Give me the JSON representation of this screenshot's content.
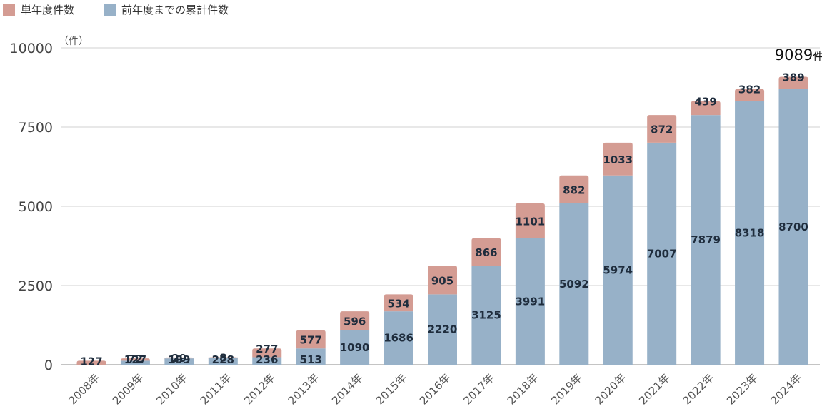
{
  "chart_data": {
    "type": "bar",
    "stacked": true,
    "categories": [
      "2008年",
      "2009年",
      "2010年",
      "2011年",
      "2012年",
      "2013年",
      "2014年",
      "2015年",
      "2016年",
      "2017年",
      "2018年",
      "2019年",
      "2020年",
      "2021年",
      "2022年",
      "2023年",
      "2024年"
    ],
    "series": [
      {
        "name": "前年度までの累計件数",
        "color": "#97b1c8",
        "values": [
          0,
          127,
          199,
          228,
          236,
          513,
          1090,
          1686,
          2220,
          3125,
          3991,
          5092,
          5974,
          7007,
          7879,
          8318,
          8700
        ]
      },
      {
        "name": "単年度件数",
        "color": "#d49c93",
        "values": [
          127,
          72,
          29,
          8,
          277,
          577,
          596,
          534,
          905,
          866,
          1101,
          882,
          1033,
          872,
          439,
          382,
          389
        ]
      }
    ],
    "ylim": [
      0,
      10000
    ],
    "yticks": [
      0,
      2500,
      5000,
      7500,
      10000
    ],
    "ylabel": "（件）",
    "grid": true,
    "legend": "top-left",
    "annotations": [
      {
        "category": "2024年",
        "value": "9089",
        "unit": "件"
      }
    ]
  }
}
